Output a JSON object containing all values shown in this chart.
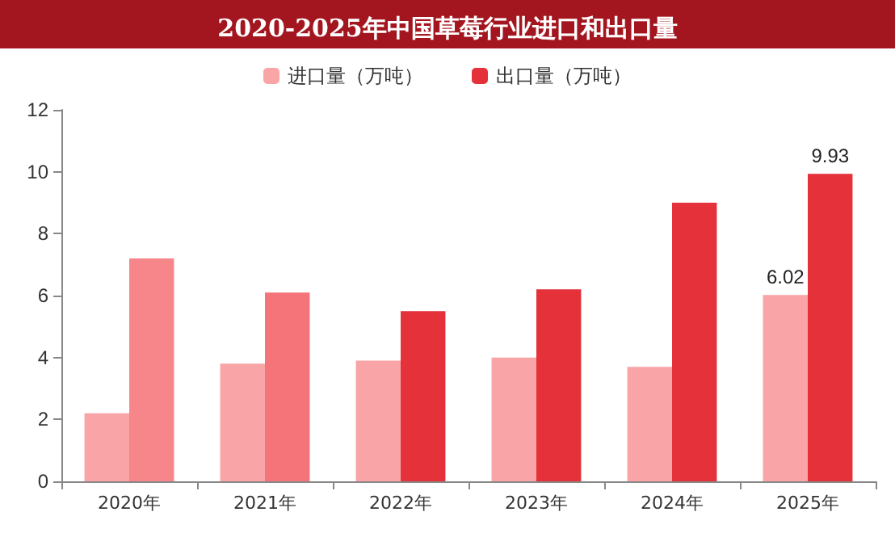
{
  "chart_data": {
    "type": "bar",
    "title": "2020-2025年中国草莓行业进口和出口量",
    "categories": [
      "2020年",
      "2021年",
      "2022年",
      "2023年",
      "2024年",
      "2025年"
    ],
    "series": [
      {
        "name": "进口量（万吨）",
        "color": "#f9a5a8",
        "values": [
          2.2,
          3.8,
          3.9,
          4.0,
          3.7,
          6.02
        ],
        "value_labels": [
          null,
          null,
          null,
          null,
          null,
          "6.02"
        ]
      },
      {
        "name": "出口量（万吨）",
        "color": "#e5313a",
        "colors": [
          "#f7868a",
          "#f57479",
          "#e5313a",
          "#e5313a",
          "#e5313a",
          "#e5313a"
        ],
        "values": [
          7.2,
          6.1,
          5.5,
          6.2,
          9.0,
          9.93
        ],
        "value_labels": [
          null,
          null,
          null,
          null,
          null,
          "9.93"
        ]
      }
    ],
    "ylim": [
      0,
      12
    ],
    "yticks": [
      0,
      2,
      4,
      6,
      8,
      10,
      12
    ],
    "grid": false,
    "legend": "top"
  }
}
